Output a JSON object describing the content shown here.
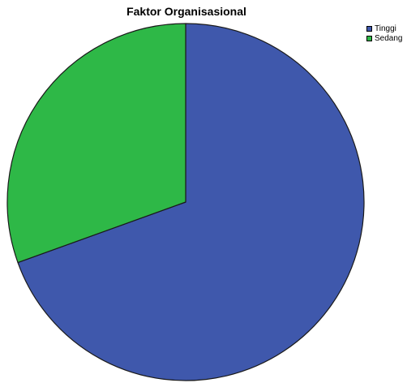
{
  "chart_data": {
    "type": "pie",
    "title": "Faktor Organisasional",
    "categories": [
      "Tinggi",
      "Sedang"
    ],
    "values": [
      69.5,
      30.5
    ],
    "colors": [
      "#3f58ac",
      "#2eb847"
    ],
    "legend_placement": "top-right",
    "start_angle_deg": 0,
    "direction": "clockwise"
  }
}
